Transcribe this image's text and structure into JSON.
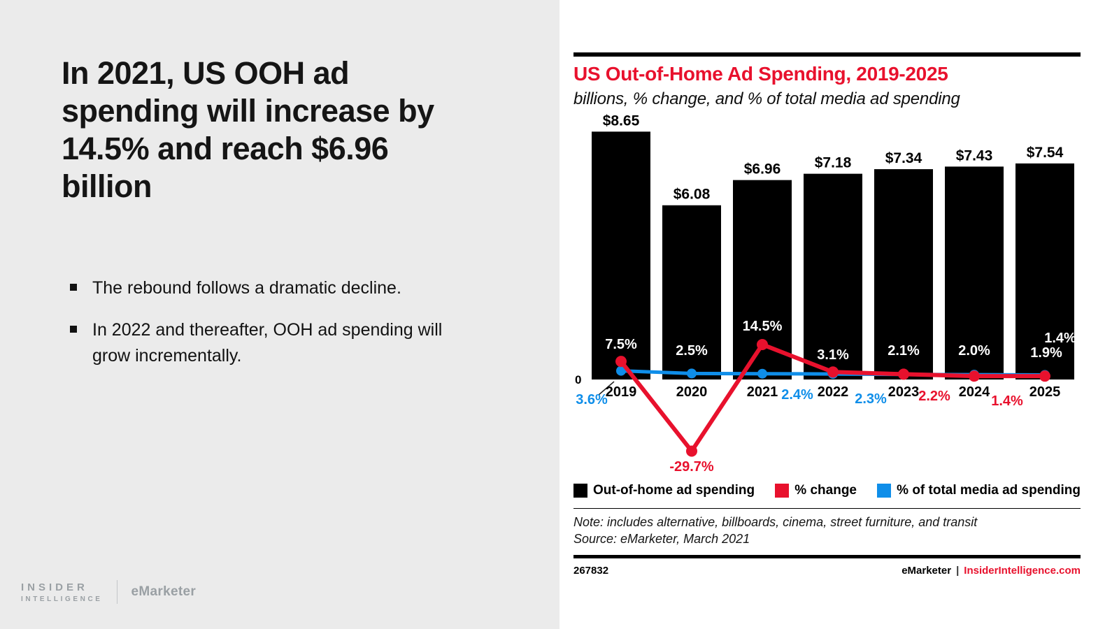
{
  "left_panel": {
    "headline": "In 2021, US OOH ad spending will increase by 14.5% and reach $6.96 billion",
    "bullets": [
      "The rebound follows a dramatic decline.",
      "In 2022 and thereafter, OOH ad spending will grow incrementally."
    ],
    "brand": {
      "insider_line1": "INSIDER",
      "insider_line2": "INTELLIGENCE",
      "emarketer": "eMarketer"
    }
  },
  "chart_panel": {
    "title": "US Out-of-Home Ad Spending, 2019-2025",
    "subtitle": "billions, % change, and % of total media ad spending",
    "note": "Note: includes alternative, billboards, cinema, street furniture, and transit",
    "source": "Source: eMarketer, March 2021",
    "chart_id": "267832",
    "footer_brand": "eMarketer",
    "footer_separator": "|",
    "footer_site": "InsiderIntelligence.com",
    "colors": {
      "bar_black": "#000000",
      "pct_change_red": "#e8112d",
      "pct_total_blue": "#0f8ee9",
      "title_red": "#e8112d"
    },
    "legend": [
      {
        "label": "Out-of-home ad spending",
        "color": "#000000"
      },
      {
        "label": "% change",
        "color": "#e8112d"
      },
      {
        "label": "% of total media ad spending",
        "color": "#0f8ee9"
      }
    ]
  },
  "chart_data": {
    "type": "bar",
    "title": "US Out-of-Home Ad Spending, 2019-2025",
    "subtitle": "billions, % change, and % of total media ad spending",
    "categories": [
      "2019",
      "2020",
      "2021",
      "2022",
      "2023",
      "2024",
      "2025"
    ],
    "baseline_label": "0",
    "ylim_bars": [
      0,
      9
    ],
    "series": [
      {
        "name": "Out-of-home ad spending",
        "type": "bar",
        "unit": "USD billions",
        "color": "#000000",
        "values": [
          8.65,
          6.08,
          6.96,
          7.18,
          7.34,
          7.43,
          7.54
        ],
        "labels": [
          "$8.65",
          "$6.08",
          "$6.96",
          "$7.18",
          "$7.34",
          "$7.43",
          "$7.54"
        ]
      },
      {
        "name": "% change",
        "type": "line",
        "unit": "%",
        "color": "#e8112d",
        "values": [
          7.5,
          -29.7,
          14.5,
          3.1,
          2.2,
          1.4,
          1.4
        ],
        "labels": [
          "7.5%",
          "-29.7%",
          "14.5%",
          "3.1%",
          "2.2%",
          "1.4%",
          "1.4%"
        ]
      },
      {
        "name": "% of total media ad spending",
        "type": "line",
        "unit": "%",
        "color": "#0f8ee9",
        "values": [
          3.6,
          2.5,
          2.4,
          2.3,
          2.1,
          2.0,
          1.9
        ],
        "labels": [
          "3.6%",
          "2.5%",
          "2.4%",
          "2.3%",
          "2.1%",
          "2.0%",
          "1.9%"
        ]
      }
    ],
    "legend_position": "bottom",
    "grid": false
  }
}
